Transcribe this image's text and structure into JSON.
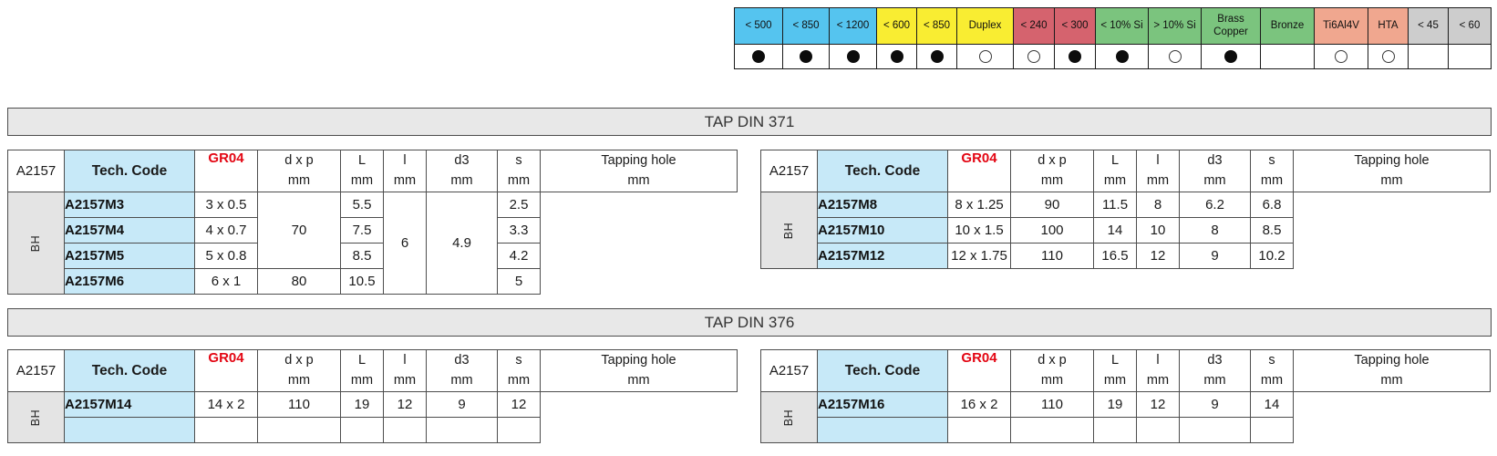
{
  "material_strip": {
    "columns": [
      {
        "label": "< 500",
        "color": "#55c4ef",
        "mark": "filled"
      },
      {
        "label": "< 850",
        "color": "#55c4ef",
        "mark": "filled"
      },
      {
        "label": "< 1200",
        "color": "#55c4ef",
        "mark": "filled"
      },
      {
        "label": "< 600",
        "color": "#f9ed32",
        "mark": "filled"
      },
      {
        "label": "< 850",
        "color": "#f9ed32",
        "mark": "filled"
      },
      {
        "label": "Duplex",
        "color": "#f9ed32",
        "mark": "open"
      },
      {
        "label": "< 240",
        "color": "#d5636e",
        "mark": "open"
      },
      {
        "label": "< 300",
        "color": "#d5636e",
        "mark": "filled"
      },
      {
        "label": "< 10% Si",
        "color": "#7bc47e",
        "mark": "filled"
      },
      {
        "label": "> 10% Si",
        "color": "#7bc47e",
        "mark": "open"
      },
      {
        "label": "Brass Copper",
        "color": "#7bc47e",
        "mark": "filled"
      },
      {
        "label": "Bronze",
        "color": "#7bc47e",
        "mark": "none"
      },
      {
        "label": "Ti6Al4V",
        "color": "#f0a78f",
        "mark": "open"
      },
      {
        "label": "HTA",
        "color": "#f0a78f",
        "mark": "open"
      },
      {
        "label": "< 45",
        "color": "#cdcdcd",
        "mark": "none"
      },
      {
        "label": "< 60",
        "color": "#cdcdcd",
        "mark": "none"
      }
    ]
  },
  "sections": [
    {
      "title": "TAP DIN 371",
      "tables": [
        {
          "series": "A2157",
          "tech_code_header": "Tech. Code",
          "grade": "GR04",
          "grade_color": "#e30613",
          "row_group_label": "BH",
          "col_headers": [
            [
              "d x p",
              "mm"
            ],
            [
              "L",
              "mm"
            ],
            [
              "l",
              "mm"
            ],
            [
              "d3",
              "mm"
            ],
            [
              "s",
              "mm"
            ],
            [
              "Tapping hole",
              "mm"
            ]
          ],
          "rows": [
            {
              "code": "A2157M3",
              "cells": [
                {
                  "t": "3 x 0.5"
                },
                {
                  "t": "70",
                  "rs": 3
                },
                {
                  "t": "5.5"
                },
                {
                  "t": "6",
                  "rs": 4
                },
                {
                  "t": "4.9",
                  "rs": 4
                },
                {
                  "t": "2.5"
                }
              ]
            },
            {
              "code": "A2157M4",
              "cells": [
                {
                  "t": "4 x 0.7"
                },
                {
                  "t": "7.5"
                },
                {
                  "t": "3.3"
                }
              ]
            },
            {
              "code": "A2157M5",
              "cells": [
                {
                  "t": "5 x 0.8"
                },
                {
                  "t": "8.5"
                },
                {
                  "t": "4.2"
                }
              ]
            },
            {
              "code": "A2157M6",
              "cells": [
                {
                  "t": "6 x 1"
                },
                {
                  "t": "80"
                },
                {
                  "t": "10.5"
                },
                {
                  "t": "5"
                }
              ]
            }
          ]
        },
        {
          "series": "A2157",
          "tech_code_header": "Tech. Code",
          "grade": "GR04",
          "grade_color": "#e30613",
          "row_group_label": "BH",
          "col_headers": [
            [
              "d x p",
              "mm"
            ],
            [
              "L",
              "mm"
            ],
            [
              "l",
              "mm"
            ],
            [
              "d3",
              "mm"
            ],
            [
              "s",
              "mm"
            ],
            [
              "Tapping hole",
              "mm"
            ]
          ],
          "rows": [
            {
              "code": "A2157M8",
              "cells": [
                {
                  "t": "8 x 1.25"
                },
                {
                  "t": "90"
                },
                {
                  "t": "11.5"
                },
                {
                  "t": "8"
                },
                {
                  "t": "6.2"
                },
                {
                  "t": "6.8"
                }
              ]
            },
            {
              "code": "A2157M10",
              "cells": [
                {
                  "t": "10 x 1.5"
                },
                {
                  "t": "100"
                },
                {
                  "t": "14"
                },
                {
                  "t": "10"
                },
                {
                  "t": "8"
                },
                {
                  "t": "8.5"
                }
              ]
            },
            {
              "code": "A2157M12",
              "cells": [
                {
                  "t": "12 x 1.75"
                },
                {
                  "t": "110"
                },
                {
                  "t": "16.5"
                },
                {
                  "t": "12"
                },
                {
                  "t": "9"
                },
                {
                  "t": "10.2"
                }
              ]
            }
          ]
        }
      ]
    },
    {
      "title": "TAP DIN 376",
      "tables": [
        {
          "series": "A2157",
          "tech_code_header": "Tech. Code",
          "grade": "GR04",
          "grade_color": "#e30613",
          "row_group_label": "BH",
          "col_headers": [
            [
              "d x p",
              "mm"
            ],
            [
              "L",
              "mm"
            ],
            [
              "l",
              "mm"
            ],
            [
              "d3",
              "mm"
            ],
            [
              "s",
              "mm"
            ],
            [
              "Tapping hole",
              "mm"
            ]
          ],
          "rows": [
            {
              "code": "A2157M14",
              "cells": [
                {
                  "t": "14 x 2"
                },
                {
                  "t": "110"
                },
                {
                  "t": "19"
                },
                {
                  "t": "12"
                },
                {
                  "t": "9"
                },
                {
                  "t": "12"
                }
              ]
            },
            {
              "code": "",
              "cells": [
                {
                  "t": ""
                },
                {
                  "t": ""
                },
                {
                  "t": ""
                },
                {
                  "t": ""
                },
                {
                  "t": ""
                },
                {
                  "t": ""
                }
              ]
            }
          ]
        },
        {
          "series": "A2157",
          "tech_code_header": "Tech. Code",
          "grade": "GR04",
          "grade_color": "#e30613",
          "row_group_label": "BH",
          "col_headers": [
            [
              "d x p",
              "mm"
            ],
            [
              "L",
              "mm"
            ],
            [
              "l",
              "mm"
            ],
            [
              "d3",
              "mm"
            ],
            [
              "s",
              "mm"
            ],
            [
              "Tapping hole",
              "mm"
            ]
          ],
          "rows": [
            {
              "code": "A2157M16",
              "cells": [
                {
                  "t": "16 x 2"
                },
                {
                  "t": "110"
                },
                {
                  "t": "19"
                },
                {
                  "t": "12"
                },
                {
                  "t": "9"
                },
                {
                  "t": "14"
                }
              ]
            },
            {
              "code": "",
              "cells": [
                {
                  "t": ""
                },
                {
                  "t": ""
                },
                {
                  "t": ""
                },
                {
                  "t": ""
                },
                {
                  "t": ""
                },
                {
                  "t": ""
                }
              ]
            }
          ]
        }
      ]
    }
  ]
}
